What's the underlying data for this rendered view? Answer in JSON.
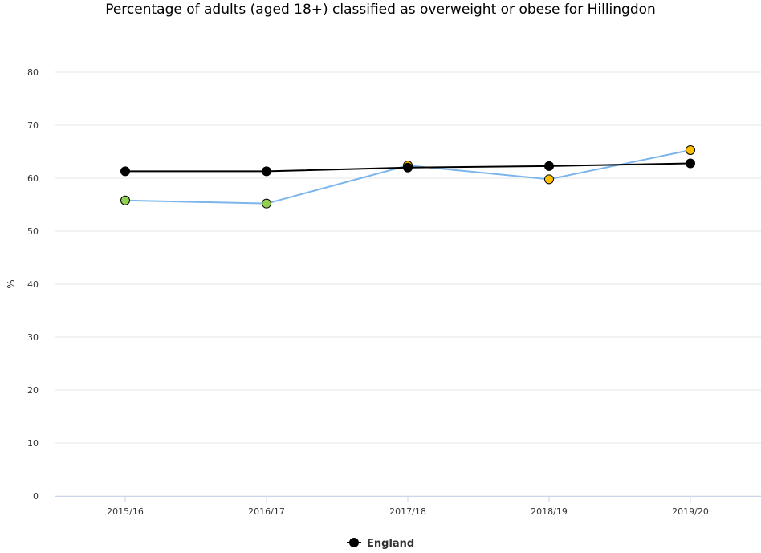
{
  "chart_data": {
    "type": "line",
    "title": "Percentage of adults (aged 18+) classified as overweight or obese for Hillingdon",
    "xlabel": "",
    "ylabel": "%",
    "categories": [
      "2015/16",
      "2016/17",
      "2017/18",
      "2018/19",
      "2019/20"
    ],
    "ylim": [
      0,
      80
    ],
    "yticks": [
      0,
      10,
      20,
      30,
      40,
      50,
      60,
      70,
      80
    ],
    "grid": true,
    "legend_position": "bottom-center",
    "series": [
      {
        "name": "England",
        "values": [
          61.3,
          61.3,
          62.0,
          62.3,
          62.8
        ],
        "color": "#000000",
        "marker_color": "#000000",
        "in_legend": true
      },
      {
        "name": "",
        "values": [
          55.8,
          55.2,
          62.4,
          59.8,
          65.3
        ],
        "color": "#7cb5ec",
        "marker_colors": [
          "#92d050",
          "#92d050",
          "#ffc000",
          "#ffc000",
          "#ffc000"
        ],
        "in_legend": false
      }
    ]
  }
}
